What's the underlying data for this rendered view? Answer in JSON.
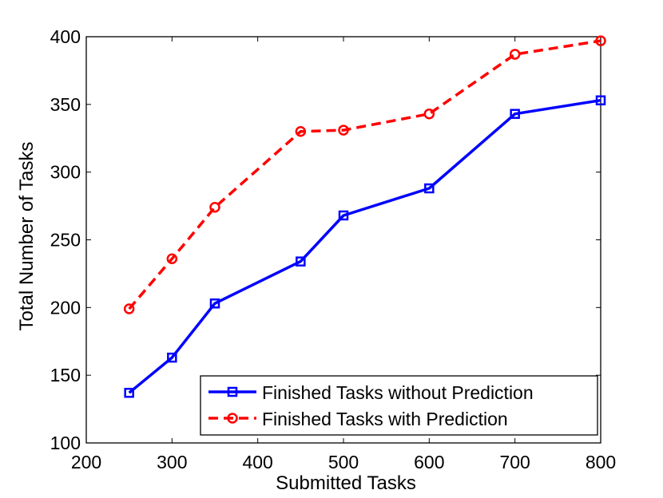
{
  "chart_data": {
    "type": "line",
    "title": "",
    "xlabel": "Submitted Tasks",
    "ylabel": "Total Number of Tasks",
    "xlim": [
      200,
      800
    ],
    "ylim": [
      100,
      400
    ],
    "xticks": [
      200,
      300,
      400,
      500,
      600,
      700,
      800
    ],
    "yticks": [
      100,
      150,
      200,
      250,
      300,
      350,
      400
    ],
    "grid": false,
    "legend_position": "bottom-right",
    "series": [
      {
        "name": "Finished Tasks without Prediction",
        "color": "#0000ff",
        "line_style": "solid",
        "marker": "square",
        "x": [
          250,
          300,
          350,
          450,
          500,
          600,
          700,
          800
        ],
        "y": [
          137,
          163,
          203,
          234,
          268,
          288,
          343,
          353
        ]
      },
      {
        "name": "Finished Tasks with Prediction",
        "color": "#ff0000",
        "line_style": "dashed",
        "marker": "circle",
        "x": [
          250,
          300,
          350,
          450,
          500,
          600,
          700,
          800
        ],
        "y": [
          199,
          236,
          274,
          330,
          331,
          343,
          387,
          397
        ]
      }
    ]
  }
}
